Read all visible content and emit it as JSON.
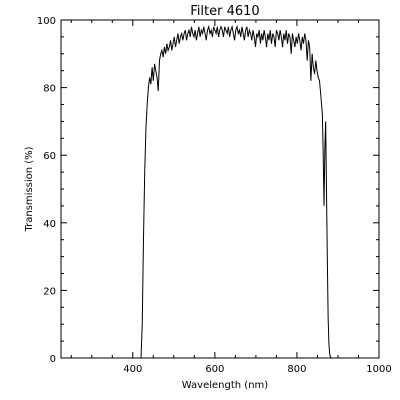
{
  "chart_data": {
    "type": "line",
    "title": "Filter 4610",
    "xlabel": "Wavelength (nm)",
    "ylabel": "Transmission (%)",
    "xlim": [
      225,
      1000
    ],
    "ylim": [
      0,
      100
    ],
    "x_ticks": [
      400,
      600,
      800,
      1000
    ],
    "y_ticks": [
      0,
      20,
      40,
      60,
      80,
      100
    ],
    "grid": false,
    "line_color": "#000000",
    "axis_color": "#000000",
    "background": "#ffffff",
    "series": [
      {
        "x": [
          420,
          423,
          426,
          429,
          432,
          435,
          438,
          441,
          444,
          447,
          450,
          453,
          456,
          459,
          462,
          465,
          468,
          471,
          474,
          477,
          480,
          483,
          486,
          489,
          492,
          495,
          498,
          501,
          504,
          507,
          510,
          513,
          516,
          519,
          522,
          525,
          528,
          531,
          534,
          537,
          540,
          543,
          546,
          549,
          552,
          555,
          558,
          561,
          564,
          567,
          570,
          573,
          576,
          579,
          582,
          585,
          588,
          591,
          594,
          597,
          600,
          603,
          606,
          609,
          612,
          615,
          618,
          621,
          624,
          627,
          630,
          633,
          636,
          639,
          642,
          645,
          648,
          651,
          654,
          657,
          660,
          663,
          666,
          669,
          672,
          675,
          678,
          681,
          684,
          687,
          690,
          693,
          696,
          699,
          702,
          705,
          708,
          711,
          714,
          717,
          720,
          723,
          726,
          729,
          732,
          735,
          738,
          741,
          744,
          747,
          750,
          753,
          756,
          759,
          762,
          765,
          768,
          771,
          774,
          777,
          780,
          783,
          786,
          789,
          792,
          795,
          798,
          801,
          804,
          807,
          810,
          813,
          816,
          819,
          822,
          825,
          828,
          831,
          834,
          837,
          840,
          843,
          846,
          849,
          852,
          855,
          858,
          860,
          862,
          864,
          866,
          868,
          870,
          872,
          874,
          876,
          878,
          880,
          883,
          886,
          890
        ],
        "y": [
          0,
          10,
          35,
          55,
          68,
          75,
          80,
          83,
          81,
          86,
          82,
          87,
          85,
          83,
          79,
          88,
          90,
          91,
          89,
          92,
          90,
          93,
          91,
          92,
          94,
          91,
          93,
          95,
          92,
          94,
          96,
          93,
          95,
          96,
          94,
          96,
          97,
          94,
          96,
          97,
          95,
          98,
          96,
          95,
          97,
          94,
          96,
          98,
          95,
          97,
          96,
          98,
          96,
          94,
          97,
          98,
          96,
          97,
          95,
          98,
          97,
          96,
          98,
          95,
          97,
          98,
          97,
          95,
          98,
          97,
          96,
          98,
          95,
          97,
          98,
          96,
          94,
          97,
          98,
          96,
          97,
          95,
          98,
          96,
          94,
          97,
          98,
          95,
          97,
          96,
          94,
          97,
          95,
          92,
          96,
          95,
          97,
          93,
          96,
          94,
          97,
          95,
          92,
          96,
          94,
          97,
          93,
          96,
          95,
          92,
          97,
          96,
          94,
          97,
          95,
          92,
          96,
          94,
          97,
          93,
          96,
          95,
          90,
          96,
          94,
          92,
          95,
          93,
          96,
          94,
          91,
          95,
          93,
          96,
          94,
          88,
          94,
          92,
          82,
          90,
          86,
          84,
          88,
          85,
          83,
          82,
          78,
          75,
          72,
          60,
          45,
          62,
          70,
          50,
          30,
          12,
          4,
          1,
          0,
          0,
          0
        ]
      }
    ]
  }
}
